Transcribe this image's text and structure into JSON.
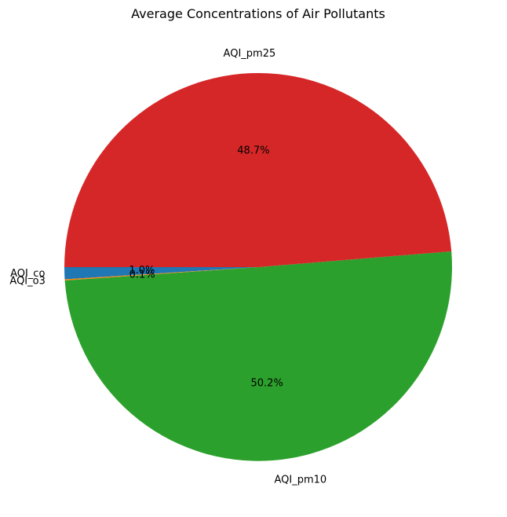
{
  "chart_data": {
    "type": "pie",
    "title": "Average Concentrations of Air Pollutants",
    "slices": [
      {
        "label": "AQI_co",
        "value": 1.0,
        "pct_label": "1.0%",
        "color": "#1f77b4"
      },
      {
        "label": "AQI_o3",
        "value": 0.1,
        "pct_label": "0.1%",
        "color": "#ff7f0e"
      },
      {
        "label": "AQI_pm10",
        "value": 50.2,
        "pct_label": "50.2%",
        "color": "#2ca02c"
      },
      {
        "label": "AQI_pm25",
        "value": 48.7,
        "pct_label": "48.7%",
        "color": "#d62728"
      }
    ],
    "legend": "none"
  }
}
